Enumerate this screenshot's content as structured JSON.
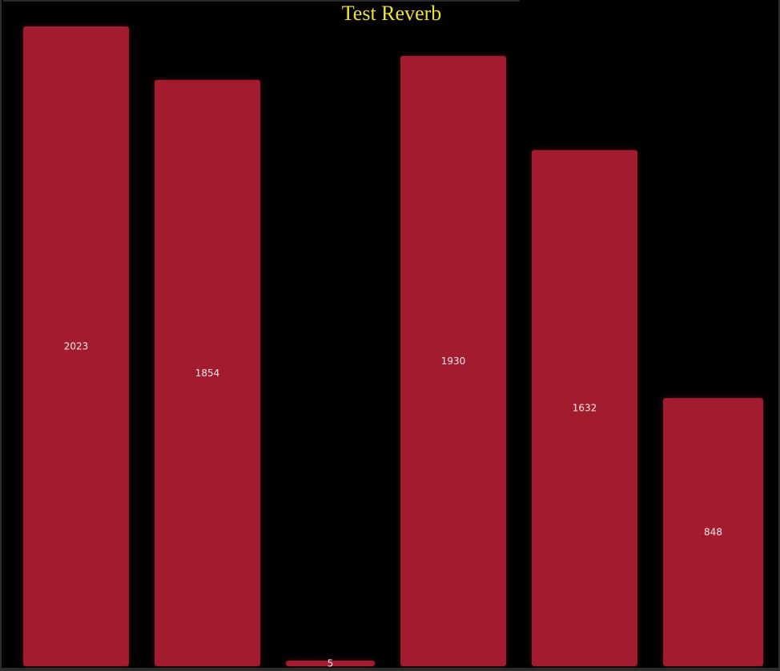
{
  "chart_data": {
    "type": "bar",
    "title": "Test Reverb",
    "categories": [
      "",
      "",
      "",
      "",
      "",
      ""
    ],
    "values": [
      2023,
      1854,
      5,
      1930,
      1632,
      848
    ],
    "ylim": [
      0,
      2023
    ],
    "grid": false,
    "legend": "none",
    "bar_color": "#a31b2f",
    "title_color": "#f0e12e",
    "label_color": "#f2e9e9",
    "background": "#000000"
  }
}
